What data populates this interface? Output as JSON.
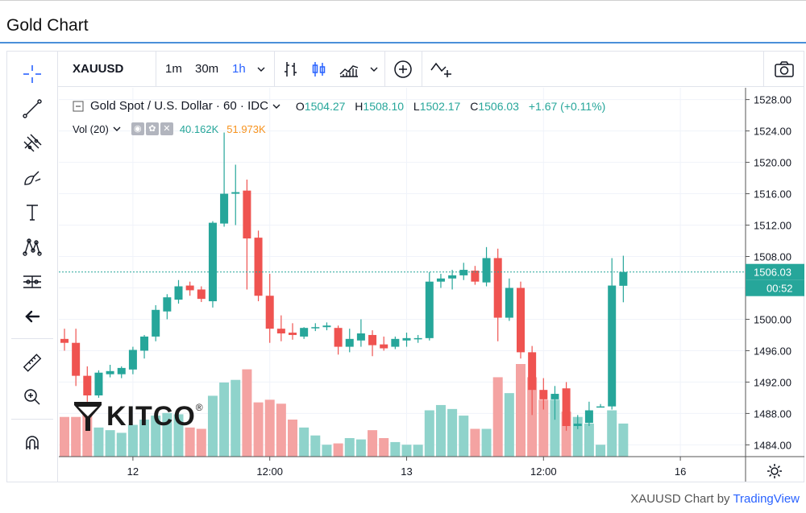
{
  "page": {
    "title": "Gold Chart"
  },
  "toolbar": {
    "symbol": "XAUUSD",
    "timeframes": [
      "1m",
      "30m",
      "1h"
    ],
    "active_timeframe": "1h"
  },
  "legend": {
    "instrument": "Gold Spot / U.S. Dollar · 60 · IDC",
    "o_label": "O",
    "o_value": "1504.27",
    "h_label": "H",
    "h_value": "1508.10",
    "l_label": "L",
    "l_value": "1502.17",
    "c_label": "C",
    "c_value": "1506.03",
    "change": "+1.67 (+0.11%)",
    "vol_label": "Vol (20)",
    "vol_value1": "40.162K",
    "vol_value2": "51.973K"
  },
  "price_axis": {
    "current_price": "1506.03",
    "countdown": "00:52"
  },
  "logo": {
    "text": "KITCO",
    "mark": "®"
  },
  "footer": {
    "text": "XAUUSD Chart by ",
    "link": "TradingView"
  },
  "colors": {
    "up": "#26a69a",
    "down": "#ef5350",
    "vol_up": "#8fd3cb",
    "vol_down": "#f4a3a2",
    "accent": "#2962ff"
  },
  "chart_data": {
    "type": "candlestick",
    "title": "Gold Spot / U.S. Dollar · 60 · IDC",
    "y_ticks": [
      1484,
      1488,
      1492,
      1496,
      1500,
      1504,
      1508,
      1512,
      1516,
      1520,
      1524,
      1528
    ],
    "y_tick_labels": [
      "1484.00",
      "1488.00",
      "1492.00",
      "1496.00",
      "1500.00",
      "1504.00",
      "1508.00",
      "1512.00",
      "1516.00",
      "1520.00",
      "1524.00",
      "1528.00"
    ],
    "ylim": [
      1482.5,
      1529.5
    ],
    "x_labels": [
      "12",
      "12:00",
      "13",
      "12:00",
      "16"
    ],
    "x_label_index": [
      6,
      18,
      30,
      42,
      54
    ],
    "candles": [
      {
        "o": 1497.5,
        "h": 1498.8,
        "l": 1496.0,
        "c": 1497.0
      },
      {
        "o": 1497.0,
        "h": 1498.8,
        "l": 1491.5,
        "c": 1492.8
      },
      {
        "o": 1492.8,
        "h": 1494.0,
        "l": 1489.5,
        "c": 1490.3
      },
      {
        "o": 1490.3,
        "h": 1493.5,
        "l": 1490.0,
        "c": 1493.2
      },
      {
        "o": 1493.0,
        "h": 1494.2,
        "l": 1492.6,
        "c": 1493.4
      },
      {
        "o": 1493.0,
        "h": 1494.0,
        "l": 1492.5,
        "c": 1493.8
      },
      {
        "o": 1493.6,
        "h": 1496.5,
        "l": 1493.0,
        "c": 1496.1
      },
      {
        "o": 1496.0,
        "h": 1498.0,
        "l": 1495.0,
        "c": 1497.8
      },
      {
        "o": 1497.8,
        "h": 1501.8,
        "l": 1497.2,
        "c": 1501.2
      },
      {
        "o": 1501.0,
        "h": 1503.2,
        "l": 1500.0,
        "c": 1502.8
      },
      {
        "o": 1502.5,
        "h": 1505.0,
        "l": 1502.0,
        "c": 1504.2
      },
      {
        "o": 1504.3,
        "h": 1504.8,
        "l": 1503.0,
        "c": 1503.7
      },
      {
        "o": 1503.8,
        "h": 1504.2,
        "l": 1502.2,
        "c": 1502.6
      },
      {
        "o": 1502.3,
        "h": 1512.5,
        "l": 1501.5,
        "c": 1512.3
      },
      {
        "o": 1512.2,
        "h": 1523.8,
        "l": 1511.8,
        "c": 1516.0
      },
      {
        "o": 1516.0,
        "h": 1519.7,
        "l": 1512.0,
        "c": 1516.2
      },
      {
        "o": 1516.4,
        "h": 1517.8,
        "l": 1503.8,
        "c": 1510.3
      },
      {
        "o": 1510.4,
        "h": 1511.3,
        "l": 1502.3,
        "c": 1503.0
      },
      {
        "o": 1503.0,
        "h": 1505.8,
        "l": 1497.0,
        "c": 1498.8
      },
      {
        "o": 1498.8,
        "h": 1500.5,
        "l": 1497.2,
        "c": 1498.2
      },
      {
        "o": 1498.3,
        "h": 1499.5,
        "l": 1497.4,
        "c": 1498.0
      },
      {
        "o": 1497.8,
        "h": 1499.0,
        "l": 1497.5,
        "c": 1498.9
      },
      {
        "o": 1498.9,
        "h": 1499.5,
        "l": 1498.5,
        "c": 1499.0
      },
      {
        "o": 1499.0,
        "h": 1499.6,
        "l": 1498.6,
        "c": 1499.2
      },
      {
        "o": 1498.9,
        "h": 1499.2,
        "l": 1495.5,
        "c": 1496.5
      },
      {
        "o": 1496.5,
        "h": 1498.8,
        "l": 1495.8,
        "c": 1497.5
      },
      {
        "o": 1497.3,
        "h": 1500.0,
        "l": 1496.5,
        "c": 1498.2
      },
      {
        "o": 1498.0,
        "h": 1498.6,
        "l": 1495.3,
        "c": 1496.7
      },
      {
        "o": 1496.8,
        "h": 1497.8,
        "l": 1496.0,
        "c": 1496.3
      },
      {
        "o": 1496.5,
        "h": 1497.8,
        "l": 1496.2,
        "c": 1497.5
      },
      {
        "o": 1497.3,
        "h": 1498.3,
        "l": 1496.5,
        "c": 1497.6
      },
      {
        "o": 1497.6,
        "h": 1498.0,
        "l": 1497.0,
        "c": 1497.6
      },
      {
        "o": 1497.6,
        "h": 1506.0,
        "l": 1497.3,
        "c": 1504.8
      },
      {
        "o": 1504.8,
        "h": 1505.8,
        "l": 1504.0,
        "c": 1505.2
      },
      {
        "o": 1505.2,
        "h": 1506.3,
        "l": 1503.8,
        "c": 1505.6
      },
      {
        "o": 1505.6,
        "h": 1507.2,
        "l": 1505.0,
        "c": 1506.3
      },
      {
        "o": 1506.2,
        "h": 1506.8,
        "l": 1504.4,
        "c": 1504.8
      },
      {
        "o": 1504.7,
        "h": 1509.2,
        "l": 1504.2,
        "c": 1507.8
      },
      {
        "o": 1507.8,
        "h": 1509.0,
        "l": 1497.2,
        "c": 1500.2
      },
      {
        "o": 1500.2,
        "h": 1505.2,
        "l": 1499.8,
        "c": 1504.0
      },
      {
        "o": 1504.0,
        "h": 1504.8,
        "l": 1495.0,
        "c": 1495.8
      },
      {
        "o": 1495.8,
        "h": 1496.6,
        "l": 1487.8,
        "c": 1491.0
      },
      {
        "o": 1491.0,
        "h": 1492.5,
        "l": 1488.5,
        "c": 1489.8
      },
      {
        "o": 1489.8,
        "h": 1491.5,
        "l": 1487.2,
        "c": 1490.5
      },
      {
        "o": 1491.2,
        "h": 1492.0,
        "l": 1485.8,
        "c": 1486.4
      },
      {
        "o": 1486.4,
        "h": 1487.8,
        "l": 1486.0,
        "c": 1486.7
      },
      {
        "o": 1486.8,
        "h": 1489.5,
        "l": 1486.4,
        "c": 1488.4
      },
      {
        "o": 1488.9,
        "h": 1489.2,
        "l": 1488.8,
        "c": 1488.9
      },
      {
        "o": 1488.9,
        "h": 1507.8,
        "l": 1488.5,
        "c": 1504.3
      },
      {
        "o": 1504.27,
        "h": 1508.1,
        "l": 1502.17,
        "c": 1506.03
      }
    ],
    "volume": [
      30,
      30,
      32,
      22,
      20,
      18,
      24,
      28,
      31,
      33,
      32,
      22,
      21,
      46,
      56,
      58,
      66,
      41,
      43,
      40,
      28,
      22,
      16,
      9,
      10,
      14,
      13,
      20,
      14,
      11,
      9,
      9,
      35,
      39,
      36,
      31,
      21,
      21,
      60,
      48,
      70,
      60,
      43,
      43,
      34,
      30,
      25,
      9,
      35,
      25
    ],
    "vol_max": 70,
    "current_price": 1506.03
  }
}
